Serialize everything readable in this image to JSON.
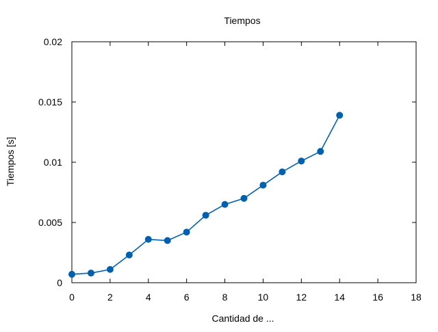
{
  "chart_data": {
    "type": "line",
    "title": "Tiempos",
    "xlabel": "Cantidad de ...",
    "ylabel": "Tiempos [s]",
    "xlim": [
      0,
      18
    ],
    "ylim": [
      0,
      0.02
    ],
    "xticks": [
      0,
      2,
      4,
      6,
      8,
      10,
      12,
      14,
      16,
      18
    ],
    "yticks": [
      0,
      0.005,
      0.01,
      0.015,
      0.02
    ],
    "ytick_labels": [
      "0",
      "0.005",
      "0.01",
      "0.015",
      "0.02"
    ],
    "grid": false,
    "series": [
      {
        "name": "Tiempos",
        "color": "#0060ad",
        "marker": "circle",
        "x": [
          0,
          1,
          2,
          3,
          4,
          5,
          6,
          7,
          8,
          9,
          10,
          11,
          12,
          13,
          14
        ],
        "values": [
          0.0007,
          0.0008,
          0.0011,
          0.0023,
          0.0036,
          0.0035,
          0.0042,
          0.0056,
          0.0065,
          0.007,
          0.0081,
          0.0092,
          0.0101,
          0.0109,
          0.0139
        ]
      }
    ]
  }
}
